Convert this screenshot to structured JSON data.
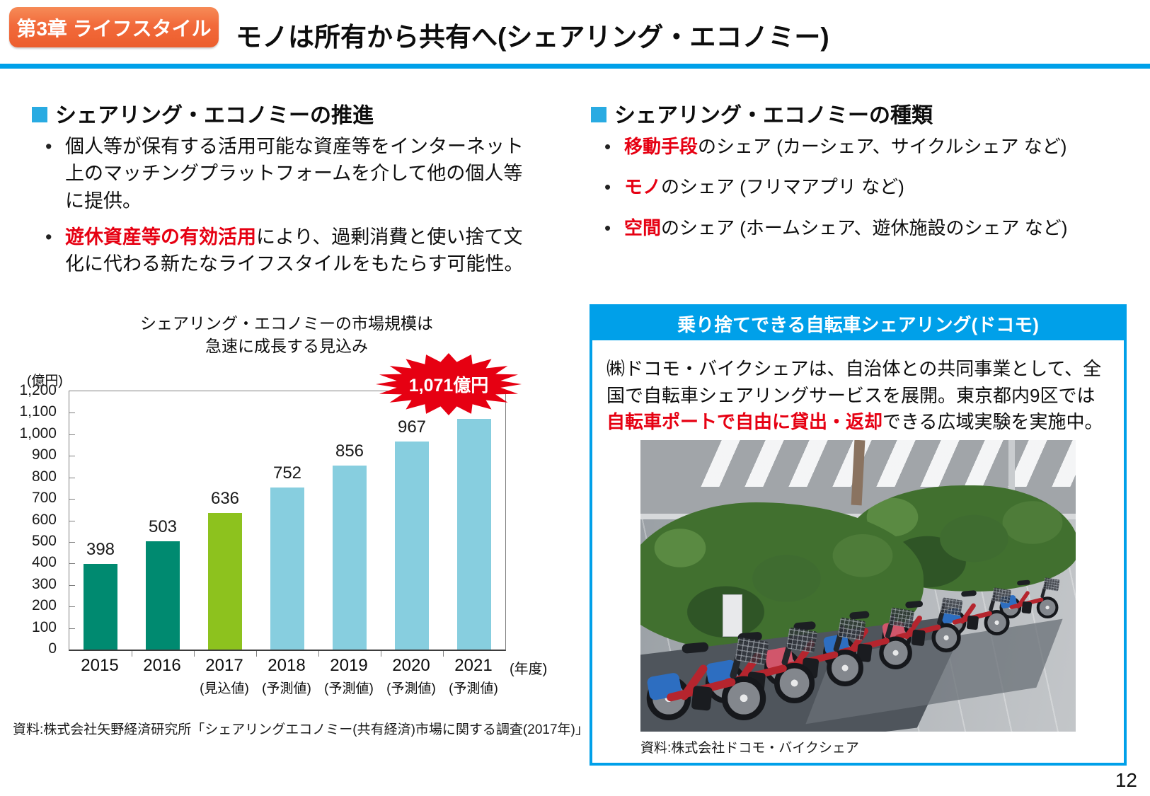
{
  "header": {
    "chapter_badge": "第3章 ライフスタイル",
    "title": "モノは所有から共有へ(シェアリング・エコノミー)"
  },
  "accent_colors": {
    "accent_blue": "#00a0e9",
    "badge_orange": "#f26a3b",
    "highlight_red": "#e60012",
    "heading_square_blue": "#29abe2"
  },
  "left": {
    "heading": "シェアリング・エコノミーの推進",
    "bullet1": "個人等が保有する活用可能な資産等をインターネット上のマッチングプラットフォームを介して他の個人等に提供。",
    "bullet2": {
      "highlight": "遊休資産等の有効活用",
      "rest": "により、過剰消費と使い捨て文化に代わる新たなライフスタイルをもたらす可能性。"
    },
    "source": "資料:株式会社矢野経済研究所「シェアリングエコノミー(共有経済)市場に関する調査(2017年)」"
  },
  "chart_data": {
    "type": "bar",
    "title_line1": "シェアリング・エコノミーの市場規模は",
    "title_line2": "急速に成長する見込み",
    "unit_label": "(億円)",
    "categories": [
      "2015",
      "2016",
      "2017",
      "2018",
      "2019",
      "2020",
      "2021"
    ],
    "sublabels": [
      "",
      "",
      "(見込値)",
      "(予測値)",
      "(予測値)",
      "(予測値)",
      "(予測値)"
    ],
    "values": [
      398,
      503,
      636,
      752,
      856,
      967,
      1071
    ],
    "bar_labels": [
      "398",
      "503",
      "636",
      "752",
      "856",
      "967",
      ""
    ],
    "bar_colors": [
      "#008a70",
      "#008a70",
      "#8dc21e",
      "#87cedf",
      "#87cedf",
      "#87cedf",
      "#87cedf"
    ],
    "ylim": [
      0,
      1200
    ],
    "y_ticks": [
      "1,200",
      "1,100",
      "1,000",
      "900",
      "800",
      "700",
      "600",
      "500",
      "400",
      "300",
      "200",
      "100",
      "0"
    ],
    "axis_suffix": "(年度)",
    "burst_label": "1,071億円",
    "grid": false,
    "legend": "none"
  },
  "right": {
    "heading": "シェアリング・エコノミーの種類",
    "bullets": [
      {
        "highlight": "移動手段",
        "rest": "のシェア (カーシェア、サイクルシェア など)"
      },
      {
        "highlight": "モノ",
        "rest": "のシェア (フリマアプリ など)"
      },
      {
        "highlight": "空間",
        "rest": "のシェア (ホームシェア、遊休施設のシェア など)"
      }
    ],
    "box": {
      "header": "乗り捨てできる自転車シェアリング(ドコモ)",
      "body_part1": "㈱ドコモ・バイクシェアは、自治体との共同事業として、全国で自転車シェアリングサービスを展開。東京都内9区では",
      "body_highlight": "自転車ポートで自由に貸出・返却",
      "body_part2": "できる広域実験を実施中。",
      "caption": "資料:株式会社ドコモ・バイクシェア"
    }
  },
  "page_number": "12"
}
